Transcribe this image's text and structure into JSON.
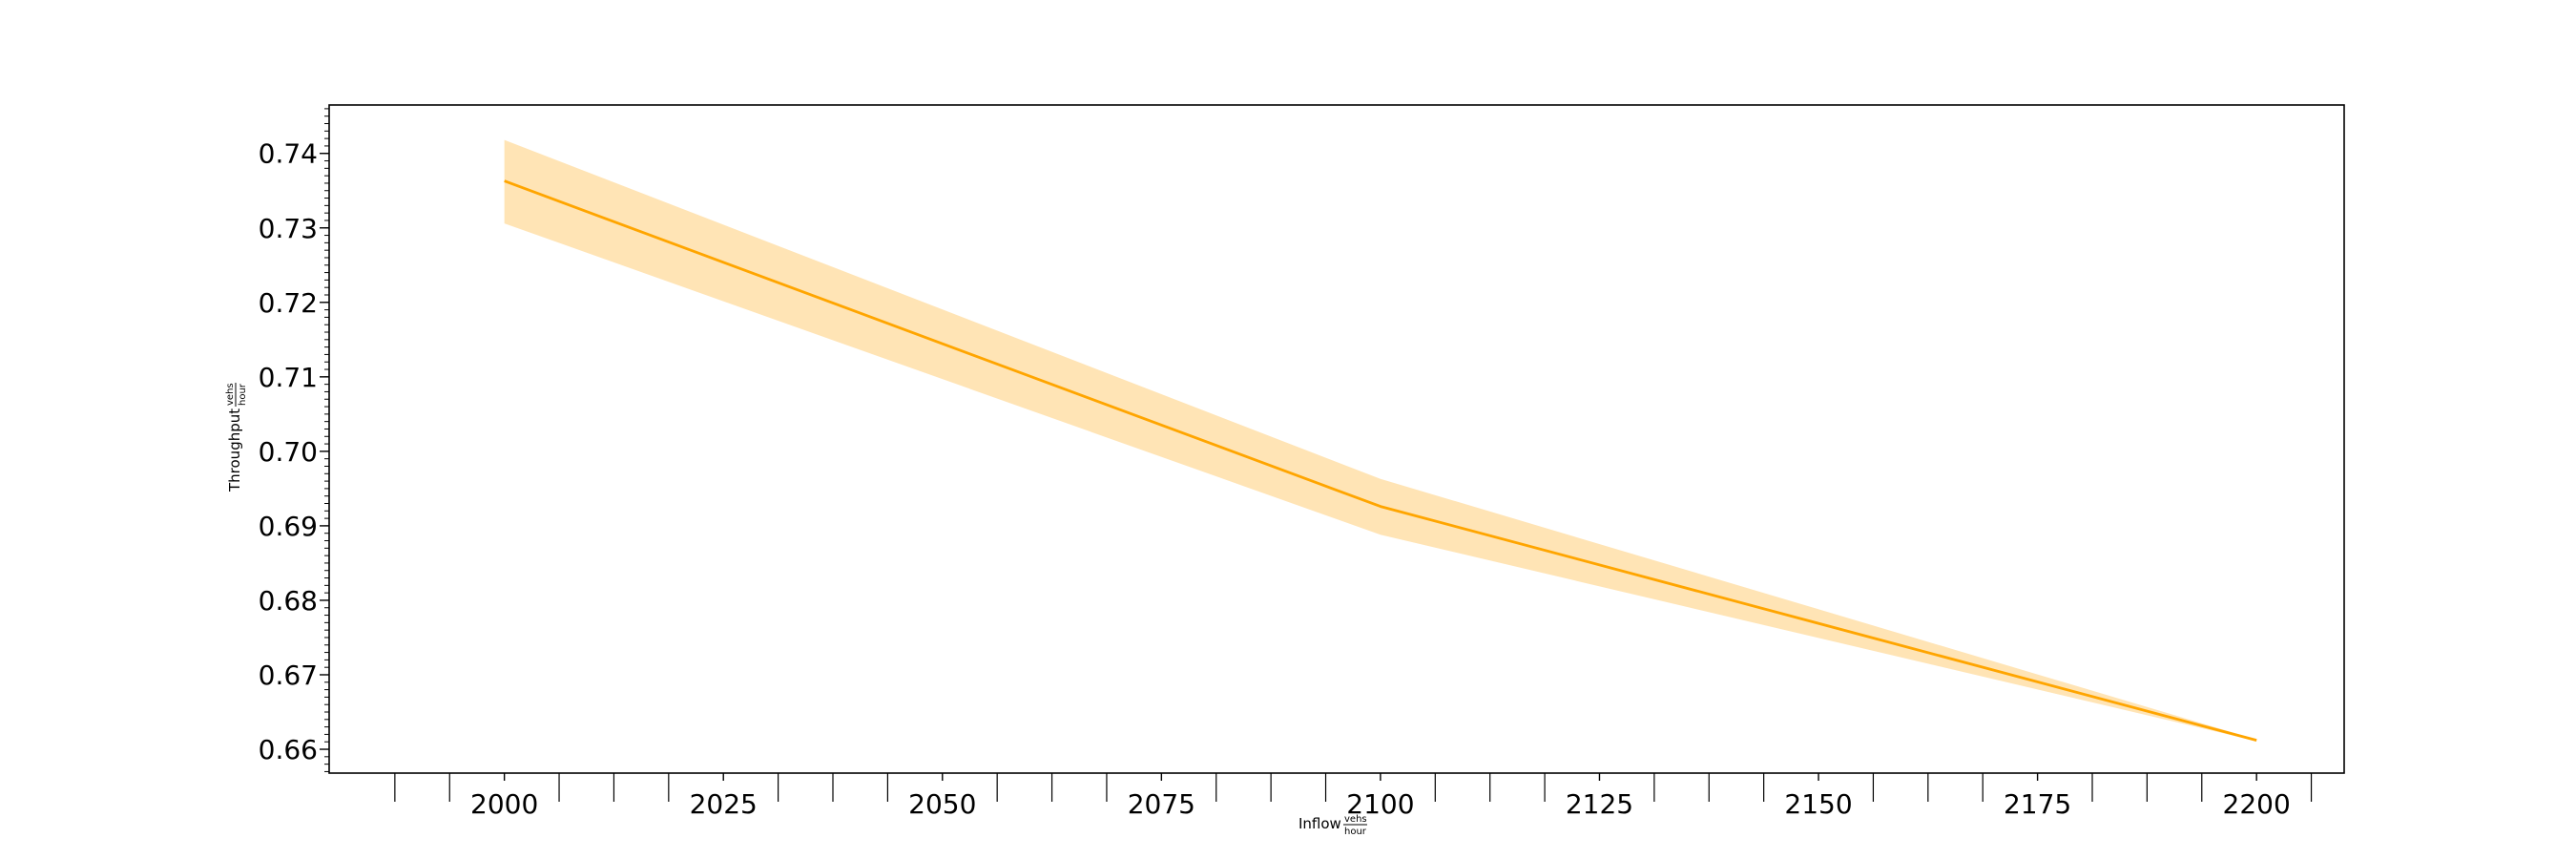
{
  "chart_data": {
    "type": "line",
    "title": "",
    "xlabel": {
      "main": "Inflow",
      "unit_num": "vehs",
      "unit_den": "hour"
    },
    "ylabel": {
      "main": "Throughput",
      "unit_num": "vehs",
      "unit_den": "hour"
    },
    "xlim": [
      1980,
      2210
    ],
    "ylim": [
      0.6568,
      0.7465
    ],
    "xticks": [
      2000,
      2025,
      2050,
      2075,
      2100,
      2125,
      2150,
      2175,
      2200
    ],
    "yticks": [
      0.66,
      0.67,
      0.68,
      0.69,
      0.7,
      0.71,
      0.72,
      0.73,
      0.74
    ],
    "ytick_labels": [
      "0.66",
      "0.67",
      "0.68",
      "0.69",
      "0.70",
      "0.71",
      "0.72",
      "0.73",
      "0.74"
    ],
    "grid": false,
    "series": [
      {
        "color": "#ffa500",
        "band_color": "#ffe4b5",
        "x": [
          2000,
          2100,
          2200
        ],
        "y": [
          0.7363,
          0.6926,
          0.6612
        ],
        "y_lower": [
          0.7306,
          0.6888,
          0.6611
        ],
        "y_upper": [
          0.7418,
          0.6963,
          0.6613
        ]
      }
    ]
  }
}
